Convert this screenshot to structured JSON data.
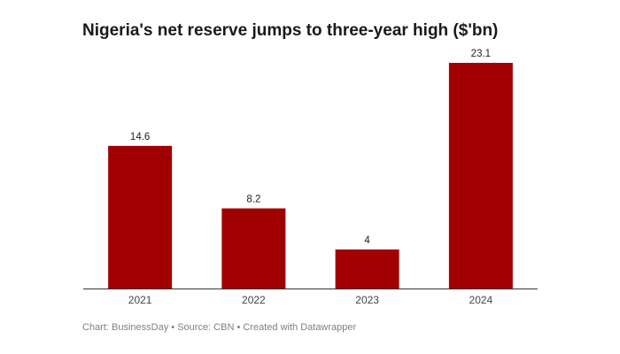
{
  "colors": {
    "bar": "#a00000",
    "baseline": "#333333"
  },
  "footer": {
    "credit": "Chart: BusinessDay",
    "source": "Source: CBN",
    "tool": "Created with Datawrapper",
    "separator": "•"
  },
  "chart_data": {
    "type": "bar",
    "title": "Nigeria's net reserve jumps to three-year high ($'bn)",
    "categories": [
      "2021",
      "2022",
      "2023",
      "2024"
    ],
    "values": [
      14.6,
      8.2,
      4,
      23.1
    ],
    "value_labels": [
      "14.6",
      "8.2",
      "4",
      "23.1"
    ],
    "xlabel": "",
    "ylabel": "",
    "ylim": [
      0,
      23.1
    ],
    "grid": false,
    "legend": "none"
  }
}
